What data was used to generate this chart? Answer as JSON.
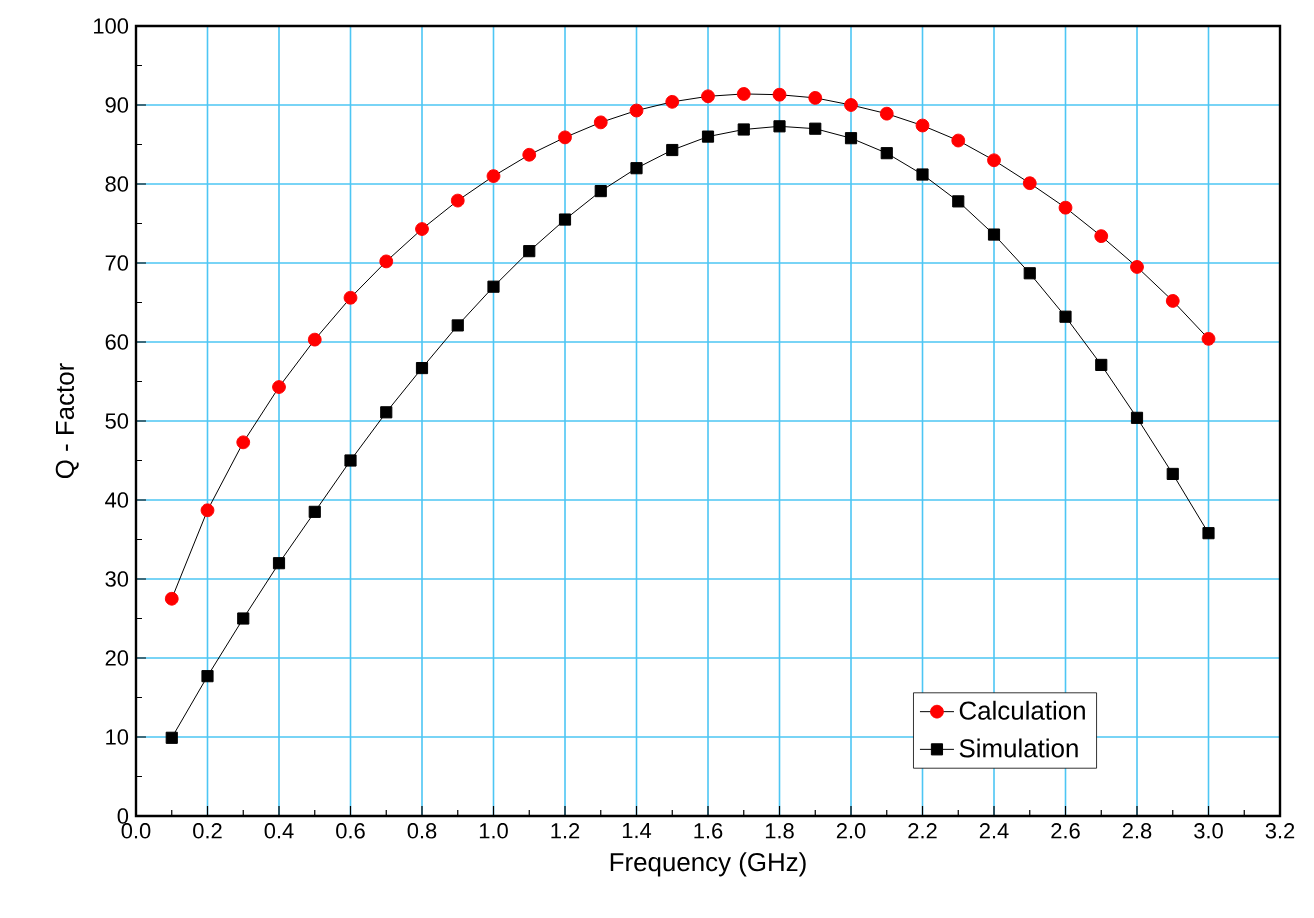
{
  "chart_data": {
    "type": "line",
    "xlabel": "Frequency (GHz)",
    "ylabel": "Q - Factor",
    "xlim": [
      0,
      3.2
    ],
    "ylim": [
      0,
      100
    ],
    "xticks": [
      {
        "value": 0,
        "label": "0.0"
      },
      0.2,
      0.4,
      0.6,
      0.8,
      {
        "value": 1,
        "label": "1.0"
      },
      1.2,
      1.4,
      1.6,
      1.8,
      {
        "value": 2,
        "label": "2.0"
      },
      2.2,
      2.4,
      2.6,
      2.8,
      {
        "value": 3,
        "label": "3.0"
      },
      3.2
    ],
    "yticks": [
      0,
      10,
      20,
      30,
      40,
      50,
      60,
      70,
      80,
      90,
      100
    ],
    "grid": true,
    "legend": "bottom right",
    "series": [
      {
        "name": "Calculation",
        "color": "#ff0000",
        "marker": "circle",
        "x": [
          0.1,
          0.2,
          0.3,
          0.4,
          0.5,
          0.6,
          0.7,
          0.8,
          0.9,
          1.0,
          1.1,
          1.2,
          1.3,
          1.4,
          1.5,
          1.6,
          1.7,
          1.8,
          1.9,
          2.0,
          2.1,
          2.2,
          2.3,
          2.4,
          2.5,
          2.6,
          2.7,
          2.8,
          2.9,
          3.0
        ],
        "values": [
          27.5,
          38.7,
          47.3,
          54.3,
          60.3,
          65.6,
          70.2,
          74.3,
          77.9,
          81.0,
          83.7,
          85.9,
          87.8,
          89.3,
          90.4,
          91.1,
          91.4,
          91.3,
          90.9,
          90.0,
          88.9,
          87.4,
          85.5,
          83.0,
          80.1,
          77.0,
          73.4,
          69.5,
          65.2,
          60.4
        ]
      },
      {
        "name": "Simulation",
        "color": "#000000",
        "marker": "square",
        "x": [
          0.1,
          0.2,
          0.3,
          0.4,
          0.5,
          0.6,
          0.7,
          0.8,
          0.9,
          1.0,
          1.1,
          1.2,
          1.3,
          1.4,
          1.5,
          1.6,
          1.7,
          1.8,
          1.9,
          2.0,
          2.1,
          2.2,
          2.3,
          2.4,
          2.5,
          2.6,
          2.7,
          2.8,
          2.9,
          3.0
        ],
        "values": [
          9.9,
          17.7,
          25.0,
          32.0,
          38.5,
          45.0,
          51.1,
          56.7,
          62.1,
          67.0,
          71.5,
          75.5,
          79.1,
          82.0,
          84.3,
          86.0,
          86.9,
          87.3,
          87.0,
          85.8,
          83.9,
          81.2,
          77.8,
          73.6,
          68.7,
          63.2,
          57.1,
          50.4,
          43.3,
          35.8
        ]
      }
    ]
  }
}
